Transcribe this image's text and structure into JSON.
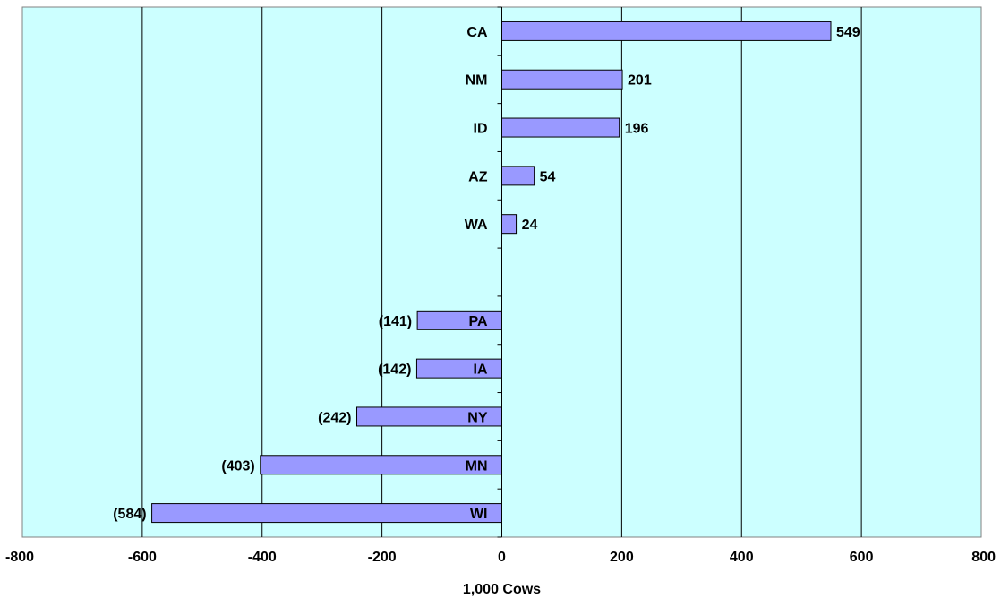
{
  "chart_data": {
    "type": "bar",
    "orientation": "horizontal",
    "categories": [
      "CA",
      "NM",
      "ID",
      "AZ",
      "WA",
      "",
      "PA",
      "IA",
      "NY",
      "MN",
      "WI"
    ],
    "values": [
      549,
      201,
      196,
      54,
      24,
      null,
      -141,
      -142,
      -242,
      -403,
      -584
    ],
    "data_labels": [
      "549",
      "201",
      "196",
      "54",
      "24",
      "",
      "(141)",
      "(142)",
      "(242)",
      "(403)",
      "(584)"
    ],
    "title": "",
    "xlabel": "1,000 Cows",
    "ylabel": "",
    "xlim": [
      -800,
      800
    ],
    "x_ticks": [
      -800,
      -600,
      -400,
      -200,
      0,
      200,
      400,
      600,
      800
    ],
    "x_tick_labels": [
      "-800",
      "-600",
      "-400",
      "-200",
      "0",
      "200",
      "400",
      "600",
      "800"
    ],
    "grid": "vertical",
    "legend": "none",
    "colors": {
      "plot_background": "#CCFFFF",
      "bar_fill": "#9999FF",
      "bar_stroke": "#000000",
      "grid": "#000000"
    }
  }
}
